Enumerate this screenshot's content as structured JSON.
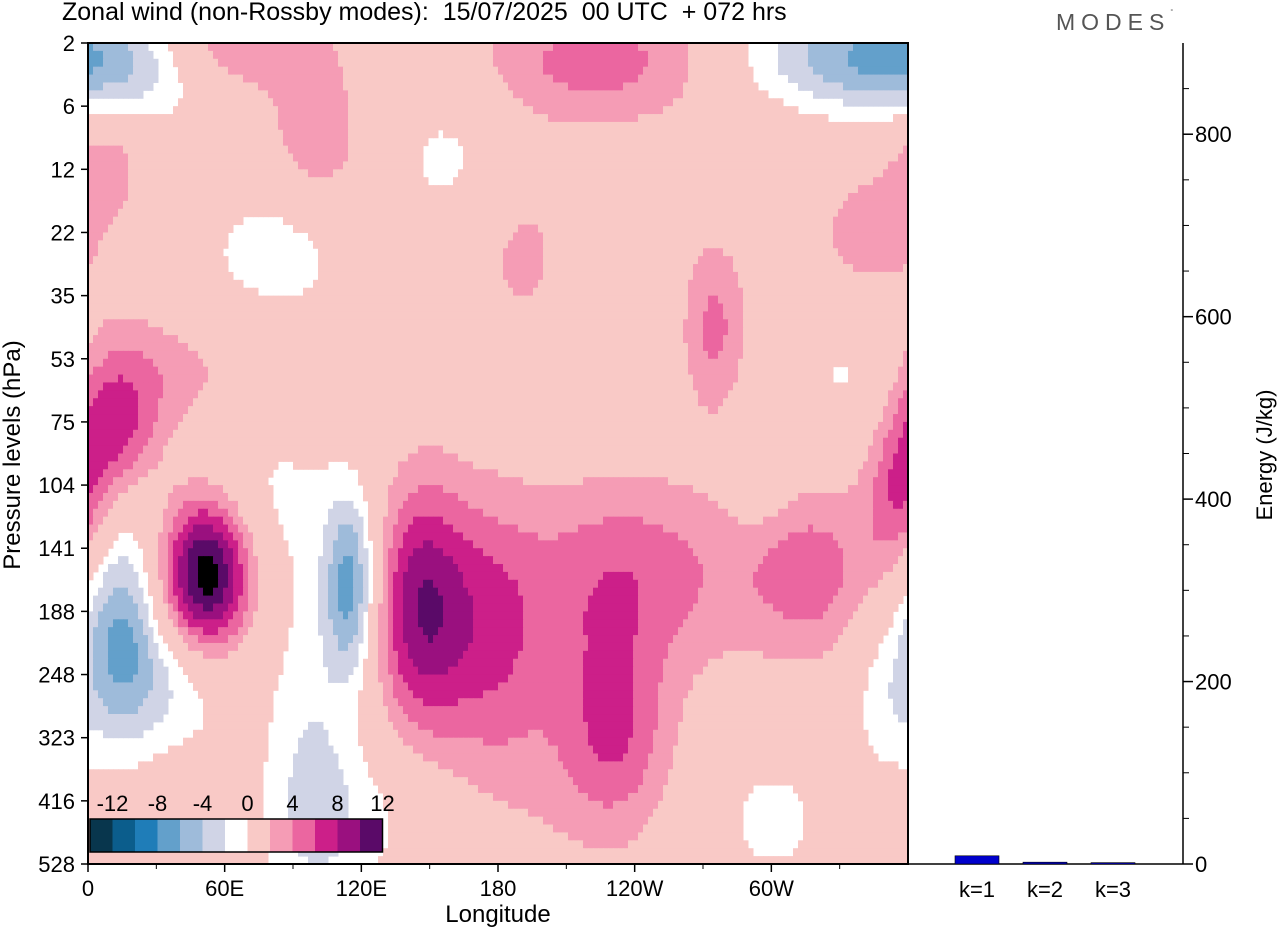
{
  "title": "Zonal wind (non-Rossby modes):  15/07/2025  00 UTC  + 072 hrs",
  "logo": "MODES",
  "logo_mark": "°",
  "colors": {
    "scale": [
      "#08364d",
      "#0b5d8c",
      "#1f7db8",
      "#63a0cb",
      "#9ebbda",
      "#d0d4e6",
      "#ffffff",
      "#f9c9c6",
      "#f59cb5",
      "#eb66a0",
      "#cc1f89",
      "#9a107f",
      "#5a0a68"
    ]
  },
  "chart_data": [
    {
      "type": "heatmap",
      "title": "Zonal wind (non-Rossby modes):  15/07/2025  00 UTC  + 072 hrs",
      "xlabel": "Longitude",
      "ylabel": "Pressure levels (hPa)",
      "x_ticks": [
        "0",
        "60E",
        "120E",
        "180",
        "120W",
        "60W"
      ],
      "x_tick_values": [
        0,
        60,
        120,
        180,
        240,
        300
      ],
      "xlim": [
        0,
        360
      ],
      "y_ticks": [
        "2",
        "6",
        "12",
        "22",
        "35",
        "53",
        "75",
        "104",
        "141",
        "188",
        "248",
        "323",
        "416",
        "528"
      ],
      "colorbar_labels": [
        "-12",
        "-8",
        "-4",
        "0",
        "4",
        "8",
        "12"
      ],
      "colorbar_levels": [
        -14,
        -12,
        -10,
        -8,
        -6,
        -4,
        -2,
        2,
        4,
        6,
        8,
        10,
        12,
        14
      ],
      "field_blobs": [
        {
          "lon": 52,
          "lvl": 8.4,
          "rl": 14,
          "rv": 0.9,
          "a": 14.5
        },
        {
          "lon": 14,
          "lvl": 9.3,
          "rl": 12,
          "rv": 1.2,
          "a": -7.5
        },
        {
          "lon": 38,
          "lvl": 10.1,
          "rl": 20,
          "rv": 0.8,
          "a": -4
        },
        {
          "lon": 115,
          "lvl": 8.6,
          "rl": 8,
          "rv": 1.0,
          "a": -8.5
        },
        {
          "lon": 98,
          "lvl": 11.3,
          "rl": 14,
          "rv": 2.0,
          "a": -3.5
        },
        {
          "lon": 146,
          "lvl": 8.9,
          "rl": 14,
          "rv": 1.4,
          "a": 9
        },
        {
          "lon": 175,
          "lvl": 9.2,
          "rl": 16,
          "rv": 1.5,
          "a": 4.5
        },
        {
          "lon": 238,
          "lvl": 8.4,
          "rl": 36,
          "rv": 1.1,
          "a": 5
        },
        {
          "lon": 232,
          "lvl": 10.9,
          "rl": 16,
          "rv": 1.1,
          "a": 4.5
        },
        {
          "lon": 318,
          "lvl": 8.4,
          "rl": 22,
          "rv": 1.0,
          "a": 4.8
        },
        {
          "lon": 205,
          "lvl": 10.7,
          "rl": 34,
          "rv": 1.7,
          "a": 2.6
        },
        {
          "lon": 356,
          "lvl": 7.3,
          "rl": 10,
          "rv": 0.8,
          "a": 5
        },
        {
          "lon": 350,
          "lvl": 10.3,
          "rl": 12,
          "rv": 1.0,
          "a": -3
        },
        {
          "lon": 340,
          "lvl": 5.2,
          "rl": 22,
          "rv": 0.8,
          "a": -4
        },
        {
          "lon": 295,
          "lvl": 6.8,
          "rl": 10,
          "rv": 0.6,
          "a": -2.5
        },
        {
          "lon": 30,
          "lvl": 5.1,
          "rl": 40,
          "rv": 0.9,
          "a": 4.5
        },
        {
          "lon": 10,
          "lvl": 6.1,
          "rl": 14,
          "rv": 0.8,
          "a": 6.5
        },
        {
          "lon": 50,
          "lvl": 4.1,
          "rl": 30,
          "rv": 1.0,
          "a": -2.2
        },
        {
          "lon": 275,
          "lvl": 4.5,
          "rl": 10,
          "rv": 1.0,
          "a": 4.5
        },
        {
          "lon": 15,
          "lvl": 0.3,
          "rl": 30,
          "rv": 0.7,
          "a": -6
        },
        {
          "lon": 330,
          "lvl": 0.2,
          "rl": 35,
          "rv": 0.6,
          "a": -6
        },
        {
          "lon": 225,
          "lvl": 0.3,
          "rl": 38,
          "rv": 0.7,
          "a": 5
        },
        {
          "lon": 100,
          "lvl": 1.7,
          "rl": 16,
          "rv": 0.9,
          "a": 4
        },
        {
          "lon": 60,
          "lvl": 0.0,
          "rl": 30,
          "rv": 0.6,
          "a": 5
        },
        {
          "lon": 190,
          "lvl": 3.2,
          "rl": 16,
          "rv": 1.2,
          "a": 2.6
        },
        {
          "lon": 160,
          "lvl": 1.8,
          "rl": 22,
          "rv": 0.9,
          "a": -2.6
        },
        {
          "lon": 90,
          "lvl": 3.1,
          "rl": 20,
          "rv": 0.9,
          "a": -3
        },
        {
          "lon": 345,
          "lvl": 3.0,
          "rl": 20,
          "rv": 0.8,
          "a": 3
        },
        {
          "lon": 70,
          "lvl": 7.1,
          "rl": 30,
          "rv": 1.2,
          "a": -2.8
        },
        {
          "lon": 118,
          "lvl": 12.3,
          "rl": 30,
          "rv": 0.9,
          "a": -2.6
        },
        {
          "lon": 300,
          "lvl": 12.3,
          "rl": 20,
          "rv": 0.9,
          "a": -2.6
        },
        {
          "lon": 8,
          "lvl": 1.8,
          "rl": 12,
          "rv": 0.7,
          "a": 3.2
        }
      ]
    },
    {
      "type": "bar",
      "categories": [
        "k=1",
        "k=2",
        "k=3"
      ],
      "values": [
        9,
        2,
        1.5
      ],
      "ylabel": "Energy (J/kg)",
      "y_ticks": [
        0,
        200,
        400,
        600,
        800
      ],
      "ylim": [
        0,
        900
      ],
      "bar_color": "#0000cc"
    }
  ]
}
